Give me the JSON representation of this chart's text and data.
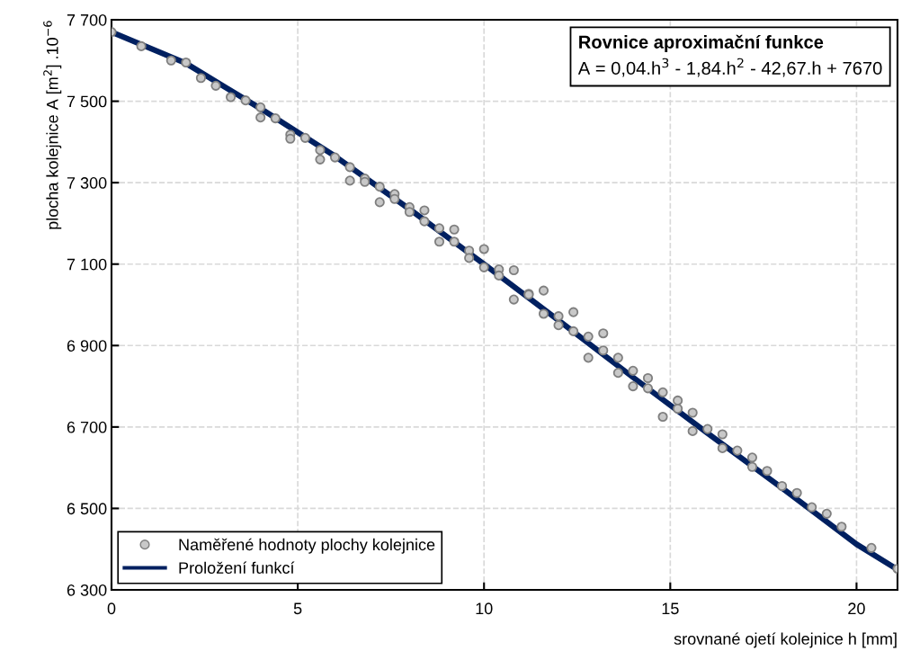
{
  "chart_data": {
    "type": "scatter",
    "xlabel": "srovnané ojetí kolejnice h [mm]",
    "ylabel": "plocha kolejnice A [m$^{2}$] .10$^{−6}$",
    "annotations": [
      "Rovnice aproximační funkce",
      "A = 0,04.h$^{3}$ - 1,84.h$^{2}$ - 42,67.h + 7670"
    ],
    "xlim": [
      0,
      21.1
    ],
    "xticks": [
      0,
      5,
      10,
      15,
      20
    ],
    "ylim": [
      6300,
      7700
    ],
    "yticks": [
      {
        "value": 6300,
        "label": "6 300"
      },
      {
        "value": 6500,
        "label": "6 500"
      },
      {
        "value": 6700,
        "label": "6 700"
      },
      {
        "value": 6900,
        "label": "6 900"
      },
      {
        "value": 7100,
        "label": "7 100"
      },
      {
        "value": 7300,
        "label": "7 300"
      },
      {
        "value": 7500,
        "label": "7 500"
      },
      {
        "value": 7700,
        "label": "7 700"
      }
    ],
    "grid": true,
    "legend": "bottom left",
    "series": [
      {
        "name": "Naměřené hodnoty plochy kolejnice",
        "marker": "circle",
        "color": "#c8c8c8",
        "x": [
          0,
          0.8,
          1.6,
          2.0,
          2.4,
          2.8,
          3.2,
          3.6,
          4.0,
          4.0,
          4.4,
          4.8,
          4.8,
          5.2,
          5.6,
          5.6,
          6.0,
          6.4,
          6.4,
          6.8,
          6.8,
          7.2,
          7.2,
          7.6,
          7.6,
          8.0,
          8.0,
          8.4,
          8.4,
          8.8,
          8.8,
          9.2,
          9.2,
          9.6,
          9.6,
          10.0,
          10.0,
          10.4,
          10.4,
          10.8,
          10.8,
          11.2,
          11.2,
          11.6,
          11.6,
          12.0,
          12.0,
          12.4,
          12.4,
          12.8,
          12.8,
          13.2,
          13.2,
          13.6,
          13.6,
          14.0,
          14.0,
          14.4,
          14.4,
          14.8,
          14.8,
          15.2,
          15.2,
          15.6,
          15.6,
          16.0,
          16.4,
          16.4,
          16.8,
          17.2,
          17.2,
          17.6,
          18.0,
          18.4,
          18.8,
          19.2,
          19.6,
          20.4,
          21.1
        ],
        "values": [
          7670,
          7635,
          7600,
          7595,
          7557,
          7538,
          7510,
          7502,
          7485,
          7460,
          7458,
          7418,
          7408,
          7410,
          7380,
          7357,
          7362,
          7338,
          7305,
          7310,
          7302,
          7290,
          7252,
          7272,
          7260,
          7240,
          7228,
          7232,
          7205,
          7188,
          7155,
          7185,
          7155,
          7133,
          7115,
          7137,
          7092,
          7087,
          7072,
          7085,
          7013,
          7027,
          7025,
          7035,
          6978,
          6972,
          6950,
          6982,
          6935,
          6922,
          6870,
          6930,
          6888,
          6870,
          6833,
          6838,
          6800,
          6820,
          6795,
          6785,
          6725,
          6765,
          6745,
          6735,
          6690,
          6695,
          6682,
          6648,
          6642,
          6625,
          6602,
          6592,
          6555,
          6538,
          6503,
          6487,
          6455,
          6403,
          6352
        ]
      },
      {
        "name": "Proložení funkcí",
        "type": "line",
        "marker": "none",
        "line_style": "solid",
        "color": "#002060",
        "x": [
          0,
          2,
          4,
          6,
          8,
          10,
          12,
          14,
          16,
          18,
          20,
          21.1
        ],
        "values": [
          7670,
          7593,
          7482,
          7365,
          7235,
          7100,
          6962,
          6822,
          6685,
          6550,
          6412,
          6350
        ]
      }
    ]
  }
}
